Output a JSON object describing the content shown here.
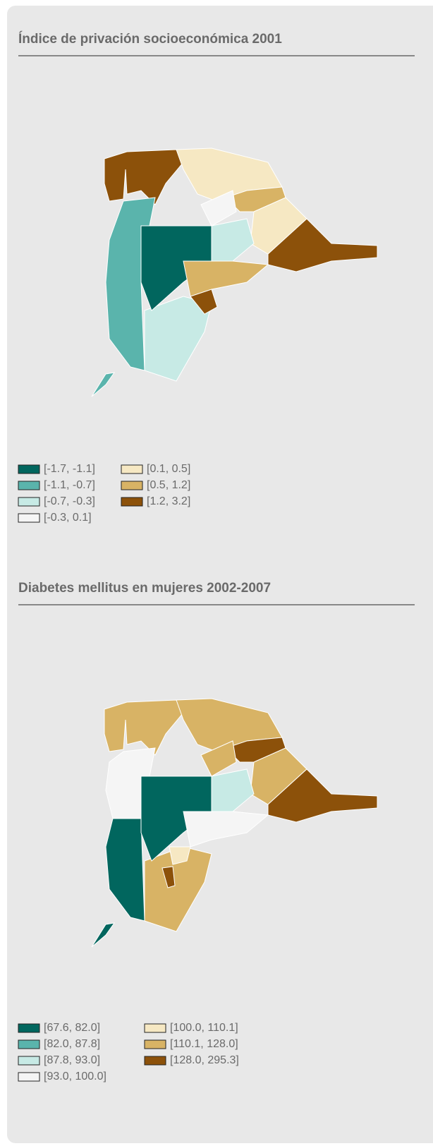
{
  "panels": [
    {
      "title": "Índice de privación socioeconómica 2001",
      "legend": [
        {
          "label": "[-1.7, -1.1]",
          "color": "#01665e"
        },
        {
          "label": "[-1.1, -0.7]",
          "color": "#5ab4ac"
        },
        {
          "label": "[-0.7, -0.3]",
          "color": "#c7eae5"
        },
        {
          "label": "[-0.3, 0.1]",
          "color": "#f5f5f5"
        },
        {
          "label": "[0.1, 0.5]",
          "color": "#f6e8c3"
        },
        {
          "label": "[0.5, 1.2]",
          "color": "#d8b365"
        },
        {
          "label": "[1.2, 3.2]",
          "color": "#8c510a"
        }
      ]
    },
    {
      "title": "Diabetes mellitus en mujeres 2002-2007",
      "legend": [
        {
          "label": "[67.6, 82.0]",
          "color": "#01665e"
        },
        {
          "label": "[82.0, 87.8]",
          "color": "#5ab4ac"
        },
        {
          "label": "[87.8, 93.0]",
          "color": "#c7eae5"
        },
        {
          "label": "[93.0, 100.0]",
          "color": "#f5f5f5"
        },
        {
          "label": "[100.0, 110.1]",
          "color": "#f6e8c3"
        },
        {
          "label": "[110.1, 128.0]",
          "color": "#d8b365"
        },
        {
          "label": "[128.0, 295.3]",
          "color": "#8c510a"
        }
      ]
    }
  ]
}
